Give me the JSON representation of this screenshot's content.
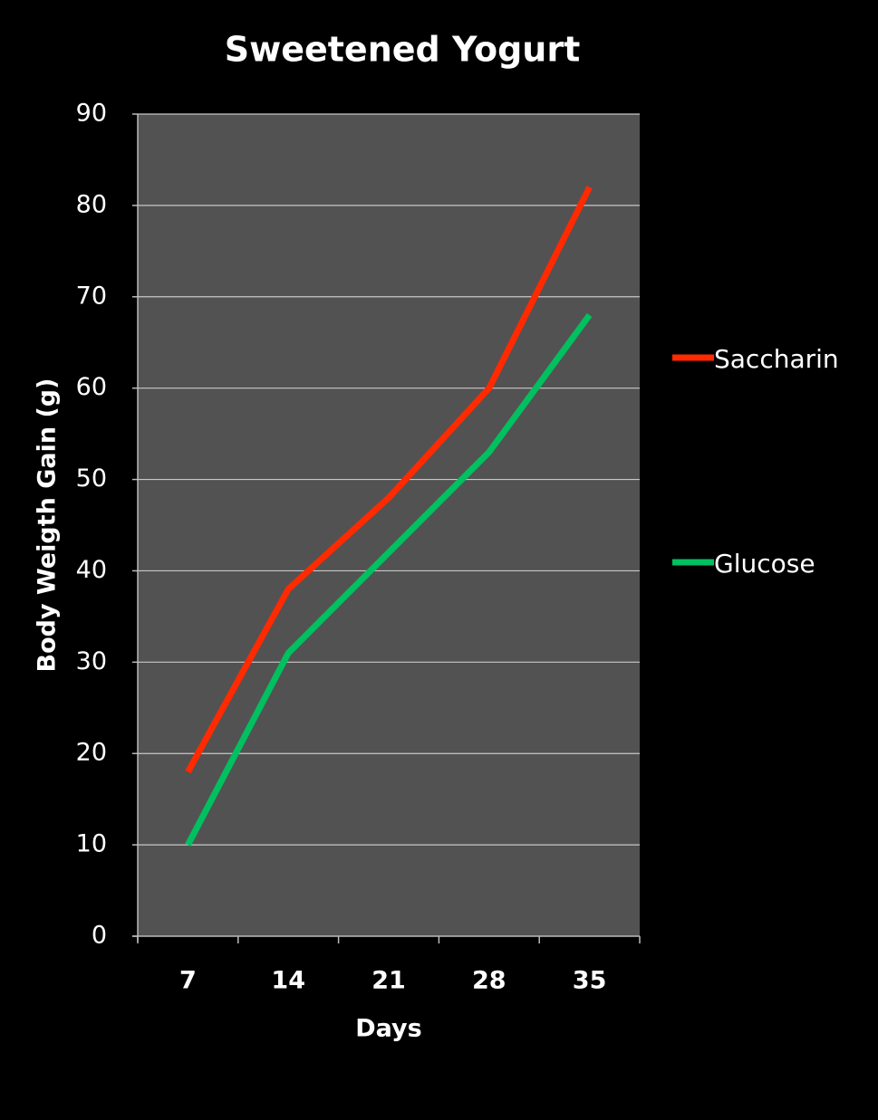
{
  "chart_data": {
    "type": "line",
    "title": "Sweetened Yogurt",
    "x_label": "Days",
    "y_label": "Body Weigth Gain (g)",
    "categories": [
      "7",
      "14",
      "21",
      "28",
      "35"
    ],
    "series": [
      {
        "name": "Saccharin",
        "color": "#ff2a00",
        "values": [
          18,
          38,
          48,
          60,
          82
        ]
      },
      {
        "name": "Glucose",
        "color": "#00c060",
        "values": [
          10,
          31,
          42,
          53,
          68
        ]
      }
    ],
    "ylim": [
      0,
      90
    ],
    "yticks": [
      0,
      10,
      20,
      30,
      40,
      50,
      60,
      70,
      80,
      90
    ],
    "grid": true
  }
}
